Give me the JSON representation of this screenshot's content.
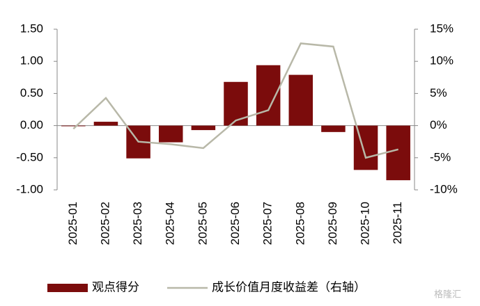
{
  "chart_data": {
    "type": "bar-line",
    "categories": [
      "2025-01",
      "2025-02",
      "2025-03",
      "2025-04",
      "2025-05",
      "2025-06",
      "2025-07",
      "2025-08",
      "2025-09",
      "2025-10",
      "2025-11"
    ],
    "series": [
      {
        "name": "观点得分",
        "type": "bar",
        "color": "#7b0c0c",
        "values": [
          -0.01,
          0.06,
          -0.51,
          -0.26,
          -0.07,
          0.68,
          0.94,
          0.79,
          -0.1,
          -0.69,
          -0.85
        ]
      },
      {
        "name": "成长价值月度收益差（右轴）",
        "type": "line",
        "axis": "y2",
        "color": "#b8b8a8",
        "values": [
          -0.5,
          4.3,
          -2.5,
          -2.9,
          -3.5,
          0.8,
          2.4,
          12.8,
          12.3,
          -5.0,
          -3.7
        ]
      }
    ],
    "ylim": [
      -1,
      1.5
    ],
    "yticks": [
      {
        "value": -1,
        "label": "-1.00"
      },
      {
        "value": -0.5,
        "label": "-0.50"
      },
      {
        "value": 0,
        "label": "0.00"
      },
      {
        "value": 0.5,
        "label": "0.50"
      },
      {
        "value": 1,
        "label": "1.00"
      },
      {
        "value": 1.5,
        "label": "1.50"
      }
    ],
    "y2lim": [
      -10,
      15
    ],
    "y2ticks": [
      {
        "value": -10,
        "label": "-10%"
      },
      {
        "value": -5,
        "label": "-5%"
      },
      {
        "value": 0,
        "label": "0%"
      },
      {
        "value": 5,
        "label": "5%"
      },
      {
        "value": 10,
        "label": "10%"
      },
      {
        "value": 15,
        "label": "15%"
      }
    ],
    "grid": false,
    "legend": "bottom",
    "watermark": "格隆汇"
  }
}
